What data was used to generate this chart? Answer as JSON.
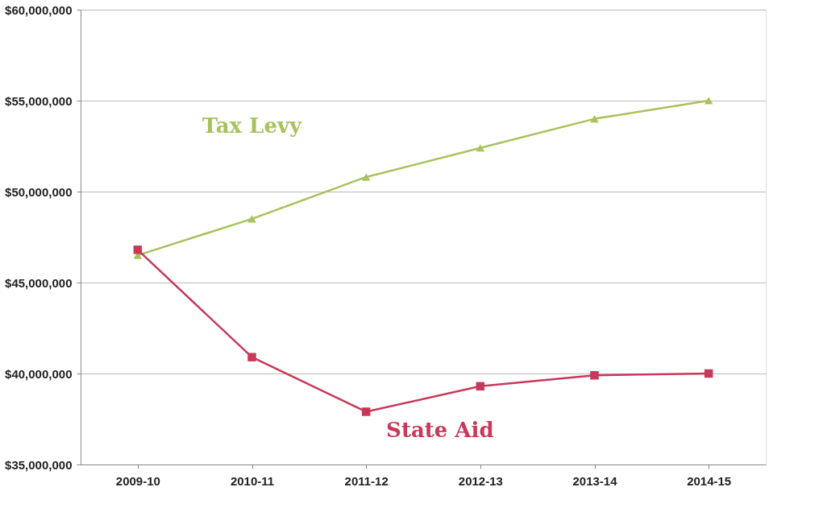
{
  "chart_data": {
    "type": "line",
    "categories": [
      "2009-10",
      "2010-11",
      "2011-12",
      "2012-13",
      "2013-14",
      "2014-15"
    ],
    "series": [
      {
        "name": "Tax Levy",
        "color": "#a8c25c",
        "marker": "triangle",
        "values": [
          46500000,
          48500000,
          50800000,
          52400000,
          54000000,
          55000000
        ]
      },
      {
        "name": "State Aid",
        "color": "#c8385a",
        "marker": "square",
        "values": [
          46800000,
          40900000,
          37900000,
          39300000,
          39900000,
          40000000
        ]
      }
    ],
    "ylim": [
      35000000,
      60000000
    ],
    "yticks": [
      {
        "value": 35000000,
        "label": "$35,000,000"
      },
      {
        "value": 40000000,
        "label": "$40,000,000"
      },
      {
        "value": 45000000,
        "label": "$45,000,000"
      },
      {
        "value": 50000000,
        "label": "$50,000,000"
      },
      {
        "value": 55000000,
        "label": "$55,000,000"
      },
      {
        "value": 60000000,
        "label": "$60,000,000"
      }
    ],
    "grid": "y",
    "line_style": "solid"
  }
}
